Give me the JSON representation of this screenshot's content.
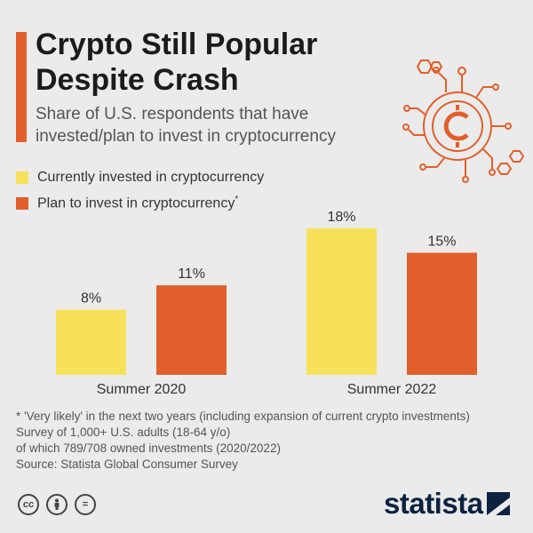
{
  "header": {
    "title": "Crypto Still Popular Despite Crash",
    "subtitle": "Share of U.S. respondents that have invested/plan to invest in cryptocurrency"
  },
  "legend": [
    {
      "label": "Currently invested in cryptocurrency",
      "color": "#f7e15a"
    },
    {
      "label": "Plan to invest in cryptocurrency",
      "marker": "*",
      "color": "#e15f2b"
    }
  ],
  "chart_data": {
    "type": "bar",
    "categories": [
      "Summer 2020",
      "Summer 2022"
    ],
    "series": [
      {
        "name": "Currently invested in cryptocurrency",
        "values": [
          8,
          18
        ],
        "labels": [
          "8%",
          "18%"
        ],
        "color": "#f7e15a"
      },
      {
        "name": "Plan to invest in cryptocurrency",
        "values": [
          11,
          15
        ],
        "labels": [
          "11%",
          "15%"
        ],
        "color": "#e15f2b"
      }
    ],
    "ylim": [
      0,
      18
    ],
    "grid": false
  },
  "footnotes": {
    "line1": "* 'Very likely' in the next two years (including expansion of current crypto investments)",
    "line2": "Survey of 1,000+ U.S. adults (18-64 y/o)",
    "line3": "of which 789/708 owned investments (2020/2022)",
    "line4": "Source: Statista Global Consumer Survey"
  },
  "footer": {
    "license_icons": [
      "creative-commons-icon",
      "attribution-icon",
      "no-derivatives-icon"
    ],
    "cc_label": "cc",
    "nd_label": "=",
    "brand": "statista"
  },
  "illustration": {
    "icon": "crypto-coin-circuit-icon",
    "color": "#e15f2b"
  }
}
